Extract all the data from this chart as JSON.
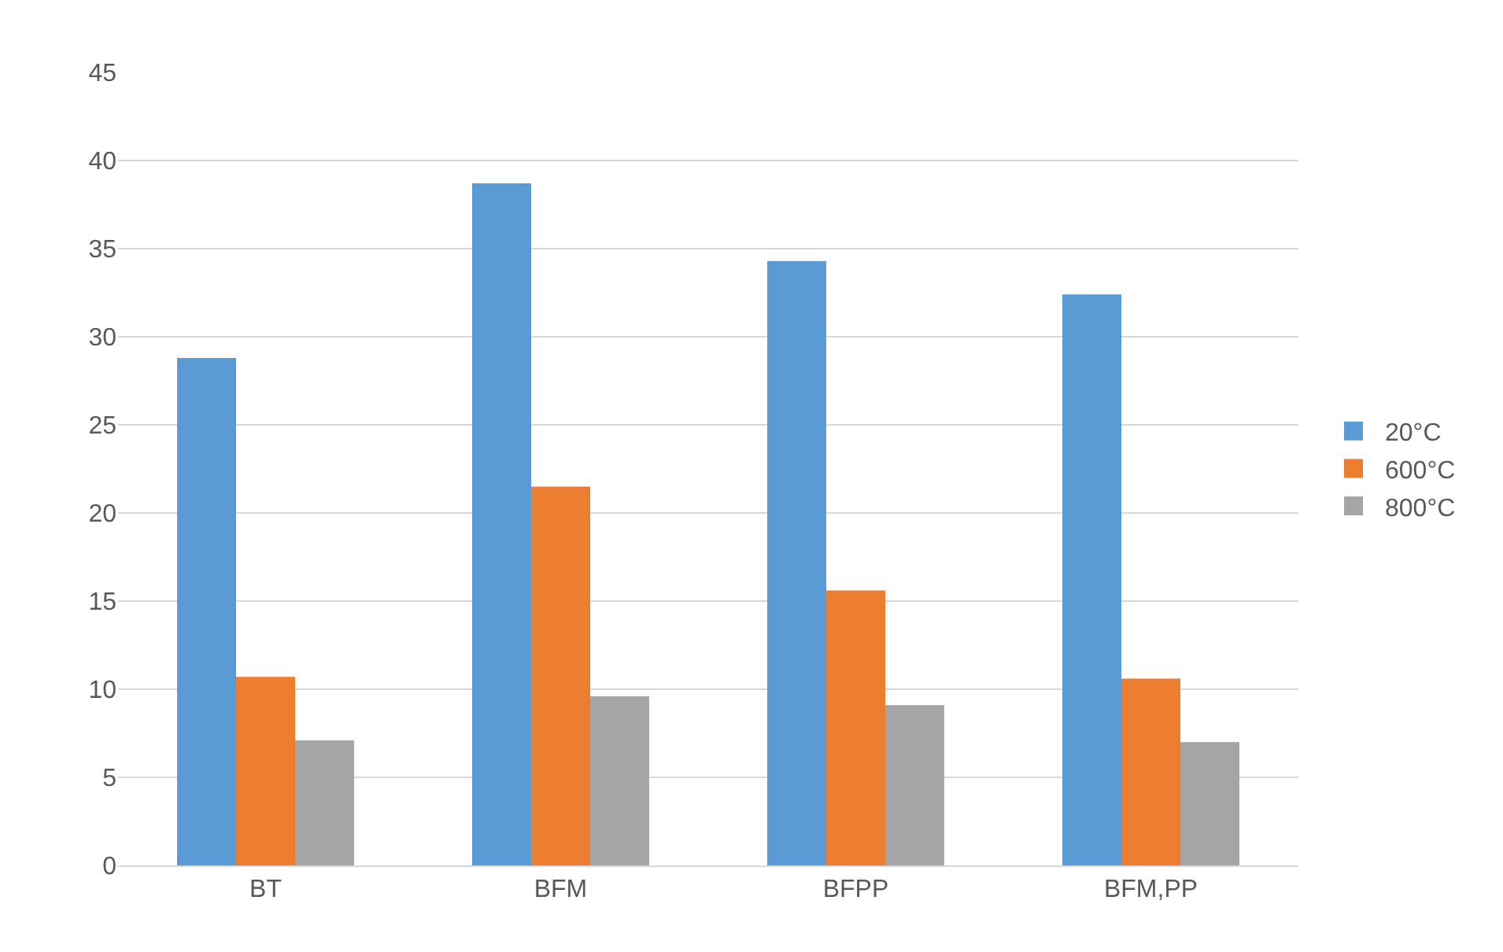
{
  "chart_data": {
    "type": "bar",
    "categories": [
      "BT",
      "BFM",
      "BFPP",
      "BFM,PP"
    ],
    "series": [
      {
        "name": "20°C",
        "color": "#5b9bd5",
        "values": [
          28.8,
          38.7,
          34.3,
          32.4
        ]
      },
      {
        "name": "600°C",
        "color": "#ed7d31",
        "values": [
          10.7,
          21.5,
          15.6,
          10.6
        ]
      },
      {
        "name": "800°C",
        "color": "#a5a5a5",
        "values": [
          7.1,
          9.6,
          9.1,
          7.0
        ]
      }
    ],
    "ylim": [
      0,
      45
    ],
    "yticks": [
      0,
      5,
      10,
      15,
      20,
      25,
      30,
      35,
      40,
      45
    ],
    "grid": "y",
    "legend": "right"
  }
}
